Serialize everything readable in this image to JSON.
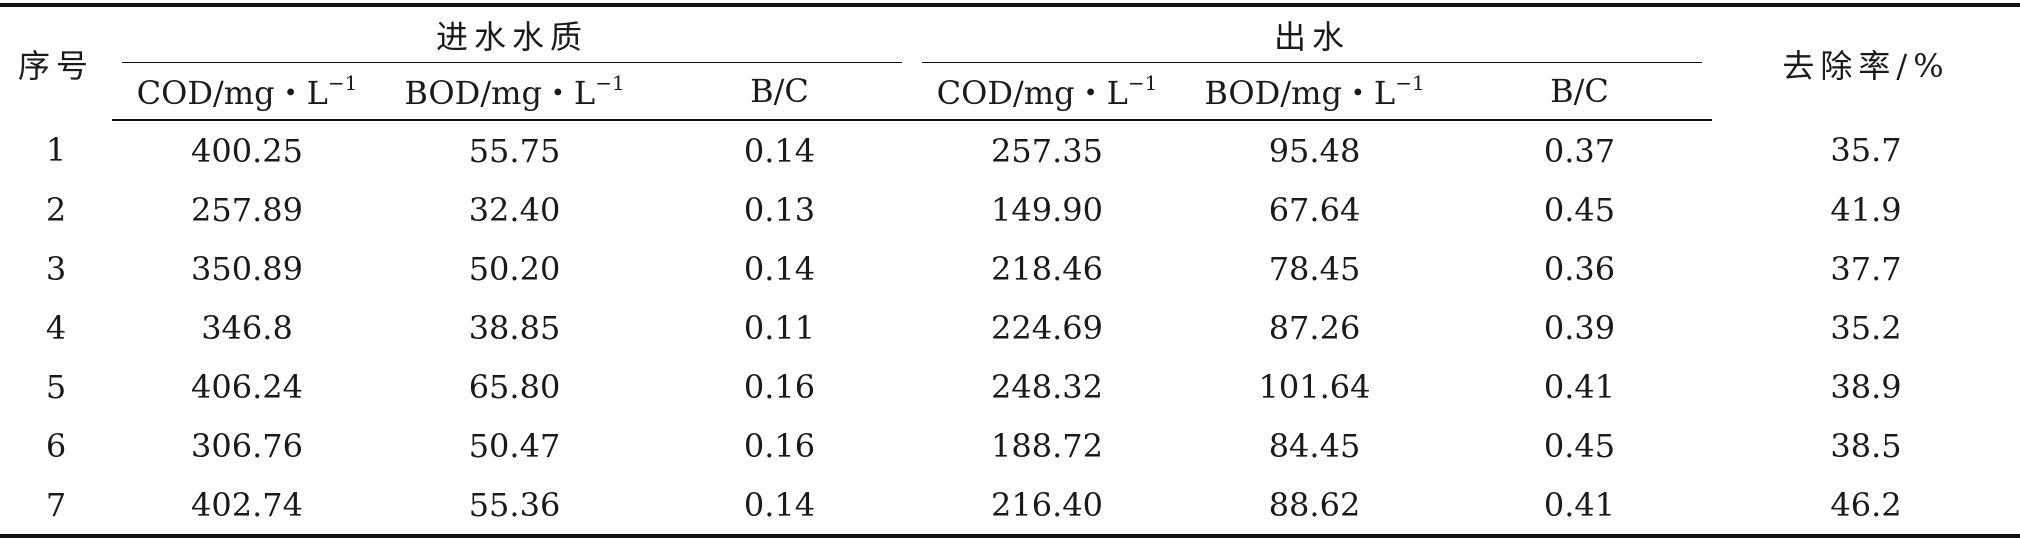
{
  "table": {
    "header": {
      "index": "序号",
      "inflow_group": "进水水质",
      "outflow_group": "出水",
      "removal_rate": "去除率/%",
      "cod_unit": "COD/mg・L",
      "bod_unit": "BOD/mg・L",
      "unit_exponent": "−1",
      "bc": "B/C"
    },
    "rows": [
      {
        "id": "1",
        "in_cod": "400.25",
        "in_bod": "55.75",
        "in_bc": "0.14",
        "out_cod": "257.35",
        "out_bod": "95.48",
        "out_bc": "0.37",
        "rate": "35.7"
      },
      {
        "id": "2",
        "in_cod": "257.89",
        "in_bod": "32.40",
        "in_bc": "0.13",
        "out_cod": "149.90",
        "out_bod": "67.64",
        "out_bc": "0.45",
        "rate": "41.9"
      },
      {
        "id": "3",
        "in_cod": "350.89",
        "in_bod": "50.20",
        "in_bc": "0.14",
        "out_cod": "218.46",
        "out_bod": "78.45",
        "out_bc": "0.36",
        "rate": "37.7"
      },
      {
        "id": "4",
        "in_cod": "346.8",
        "in_bod": "38.85",
        "in_bc": "0.11",
        "out_cod": "224.69",
        "out_bod": "87.26",
        "out_bc": "0.39",
        "rate": "35.2"
      },
      {
        "id": "5",
        "in_cod": "406.24",
        "in_bod": "65.80",
        "in_bc": "0.16",
        "out_cod": "248.32",
        "out_bod": "101.64",
        "out_bc": "0.41",
        "rate": "38.9"
      },
      {
        "id": "6",
        "in_cod": "306.76",
        "in_bod": "50.47",
        "in_bc": "0.16",
        "out_cod": "188.72",
        "out_bod": "84.45",
        "out_bc": "0.45",
        "rate": "38.5"
      },
      {
        "id": "7",
        "in_cod": "402.74",
        "in_bod": "55.36",
        "in_bc": "0.14",
        "out_cod": "216.40",
        "out_bod": "88.62",
        "out_bc": "0.41",
        "rate": "46.2"
      }
    ]
  }
}
